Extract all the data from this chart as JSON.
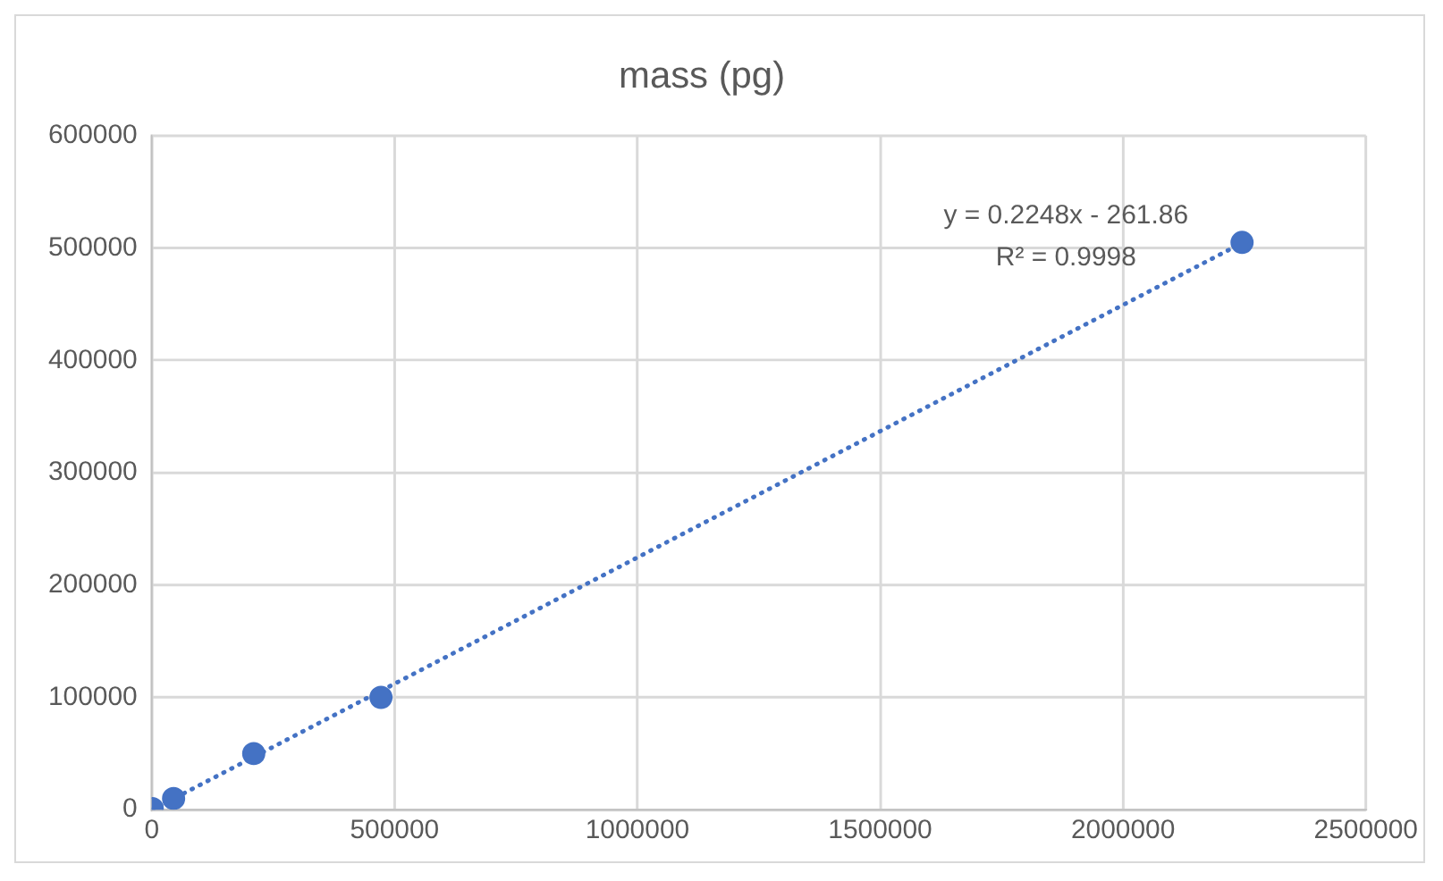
{
  "chart_data": {
    "type": "scatter",
    "title": "mass (pg)",
    "series": [
      {
        "color": "#4472c4",
        "x": [
          1000,
          45000,
          210000,
          472000,
          2245000
        ],
        "values": [
          1000,
          10000,
          50000,
          100000,
          505000
        ],
        "marker": "circle"
      },
      {
        "type": "line",
        "color": "#4472c4",
        "x": [
          1200,
          2245000
        ],
        "values": [
          0,
          504400
        ],
        "line_style": "dotted",
        "marker": "none"
      }
    ],
    "annotations": [
      "y = 0.2248x - 261.86",
      "R² = 0.9998"
    ],
    "xlim": [
      0,
      2500000
    ],
    "xticks": [
      0,
      500000,
      1000000,
      1500000,
      2000000,
      2500000
    ],
    "ylim": [
      0,
      600000
    ],
    "yticks": [
      0,
      100000,
      200000,
      300000,
      400000,
      500000,
      600000
    ],
    "grid": true,
    "legend": false
  }
}
